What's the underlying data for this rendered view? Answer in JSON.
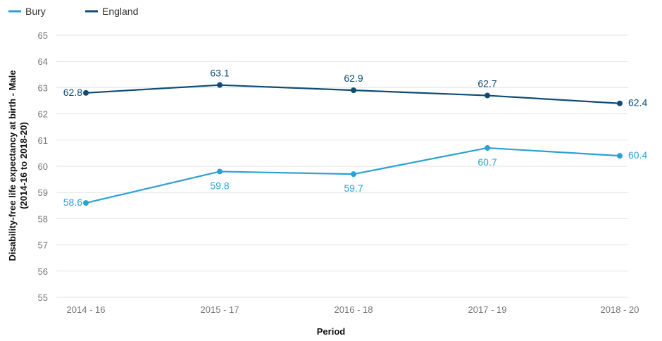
{
  "chart_data": {
    "type": "line",
    "categories": [
      "2014 - 16",
      "2015 - 17",
      "2016 - 18",
      "2017 - 19",
      "2018 - 20"
    ],
    "series": [
      {
        "name": "Bury",
        "values": [
          58.6,
          59.8,
          59.7,
          60.7,
          60.4
        ],
        "color": "#2ba1d1"
      },
      {
        "name": "England",
        "values": [
          62.8,
          63.1,
          62.9,
          62.7,
          62.4
        ],
        "color": "#0f4c75"
      }
    ],
    "xlabel": "Period",
    "ylabel_lines": [
      "Disability-free life expectancy at birth - Male",
      "(2014-16 to 2018-20)"
    ],
    "ylim": [
      55,
      65
    ],
    "yticks": [
      "55",
      "56",
      "57",
      "58",
      "59",
      "60",
      "61",
      "62",
      "63",
      "64",
      "65"
    ],
    "grid": "horizontal",
    "legend_position": "top-left",
    "data_labels": {
      "Bury": [
        "58.6",
        "59.8",
        "59.7",
        "60.7",
        "60.4"
      ],
      "England": [
        "62.8",
        "63.1",
        "62.9",
        "62.7",
        "62.4"
      ]
    }
  }
}
